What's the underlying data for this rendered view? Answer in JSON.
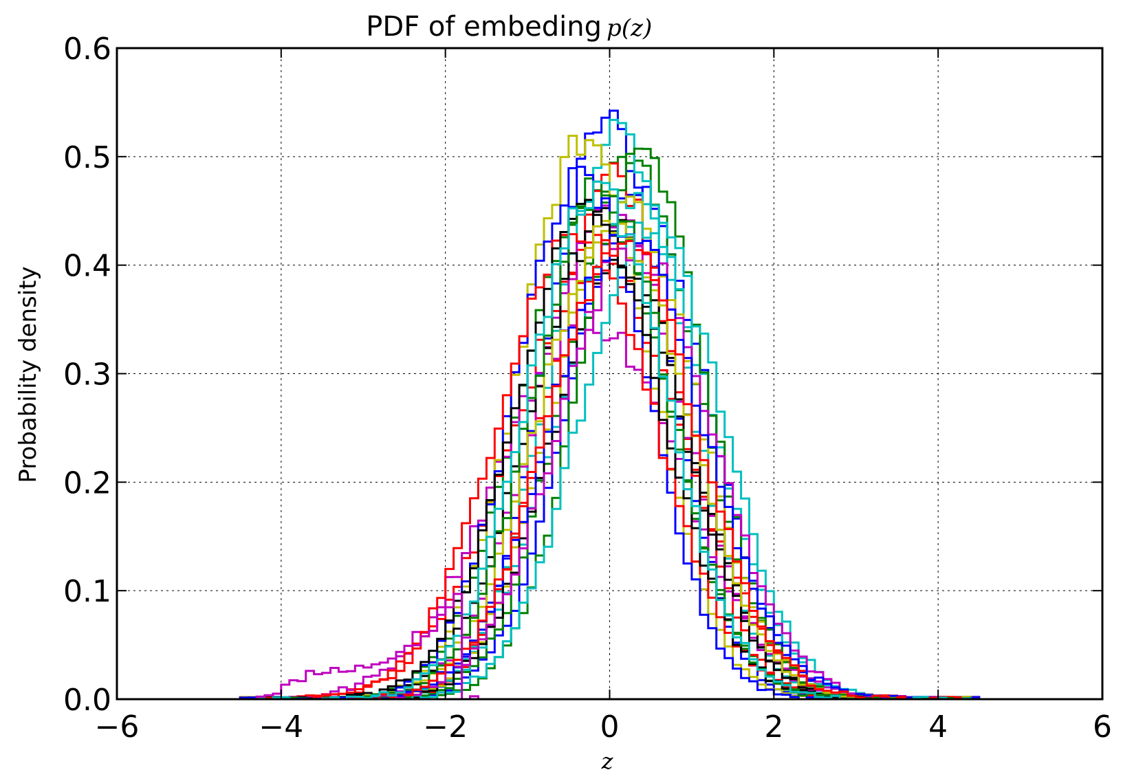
{
  "chart_data": {
    "type": "line",
    "title": "PDF of embeding ",
    "title_math": "p(z)",
    "xlabel": "z",
    "ylabel": "Probability density",
    "xlim": [
      -6,
      6
    ],
    "ylim": [
      0.0,
      0.6
    ],
    "xticks": [
      -6,
      -4,
      -2,
      0,
      2,
      4,
      6
    ],
    "xtick_labels": [
      "−6",
      "−4",
      "−2",
      "0",
      "2",
      "4",
      "6"
    ],
    "yticks": [
      0.0,
      0.1,
      0.2,
      0.3,
      0.4,
      0.5,
      0.6
    ],
    "ytick_labels": [
      "0.0",
      "0.1",
      "0.2",
      "0.3",
      "0.4",
      "0.5",
      "0.6"
    ],
    "grid": true,
    "legend": "none",
    "histtype": "step",
    "bin_width": 0.1,
    "series": [
      {
        "color": "#0000ff",
        "mu": -0.03,
        "sigma": 0.74,
        "peak": 0.535
      },
      {
        "color": "#0000ff",
        "mu": 0.35,
        "sigma": 0.82,
        "peak": 0.47
      },
      {
        "color": "#008000",
        "mu": 0.25,
        "sigma": 0.8,
        "peak": 0.495
      },
      {
        "color": "#008000",
        "mu": -0.2,
        "sigma": 0.86,
        "peak": 0.47
      },
      {
        "color": "#ff0000",
        "mu": -0.15,
        "sigma": 1.05,
        "peak": 0.4
      },
      {
        "color": "#ff0000",
        "mu": 0.05,
        "sigma": 0.78,
        "peak": 0.485
      },
      {
        "color": "#00bfbf",
        "mu": 0.1,
        "sigma": 0.8,
        "peak": 0.52
      },
      {
        "color": "#00bfbf",
        "mu": 0.3,
        "sigma": 0.88,
        "peak": 0.46
      },
      {
        "color": "#bf00bf",
        "mu": -0.25,
        "sigma": 1.1,
        "peak": 0.35
      },
      {
        "color": "#bf00bf",
        "mu": 0.0,
        "sigma": 0.88,
        "peak": 0.45
      },
      {
        "color": "#bfbf00",
        "mu": -0.3,
        "sigma": 0.8,
        "peak": 0.515
      },
      {
        "color": "#bfbf00",
        "mu": 0.2,
        "sigma": 0.86,
        "peak": 0.46
      },
      {
        "color": "#000000",
        "mu": -0.05,
        "sigma": 0.9,
        "peak": 0.44
      },
      {
        "color": "#000000",
        "mu": 0.15,
        "sigma": 0.84,
        "peak": 0.4
      },
      {
        "color": "#0000ff",
        "mu": -0.35,
        "sigma": 0.8,
        "peak": 0.48
      },
      {
        "color": "#008000",
        "mu": 0.4,
        "sigma": 0.76,
        "peak": 0.5
      },
      {
        "color": "#ff0000",
        "mu": -0.4,
        "sigma": 0.95,
        "peak": 0.43
      },
      {
        "color": "#00bfbf",
        "mu": 0.5,
        "sigma": 0.85,
        "peak": 0.44
      },
      {
        "color": "#bf00bf",
        "mu": 0.3,
        "sigma": 0.92,
        "peak": 0.42
      },
      {
        "color": "#bfbf00",
        "mu": 0.05,
        "sigma": 0.9,
        "peak": 0.44
      },
      {
        "color": "#000000",
        "mu": -0.25,
        "sigma": 0.88,
        "peak": 0.45
      },
      {
        "color": "#008000",
        "mu": -0.1,
        "sigma": 0.82,
        "peak": 0.47
      },
      {
        "color": "#0000ff",
        "mu": 0.2,
        "sigma": 0.92,
        "peak": 0.43
      },
      {
        "color": "#ff0000",
        "mu": 0.15,
        "sigma": 0.9,
        "peak": 0.42
      },
      {
        "color": "#00bfbf",
        "mu": -0.15,
        "sigma": 0.84,
        "peak": 0.47
      }
    ],
    "left_tail": {
      "color": "#bf00bf",
      "points": [
        [
          -4.0,
          0.01
        ],
        [
          -3.6,
          0.025
        ],
        [
          -3.0,
          0.03
        ],
        [
          -2.6,
          0.04
        ],
        [
          -2.2,
          0.06
        ],
        [
          -1.8,
          0.1
        ]
      ]
    }
  }
}
